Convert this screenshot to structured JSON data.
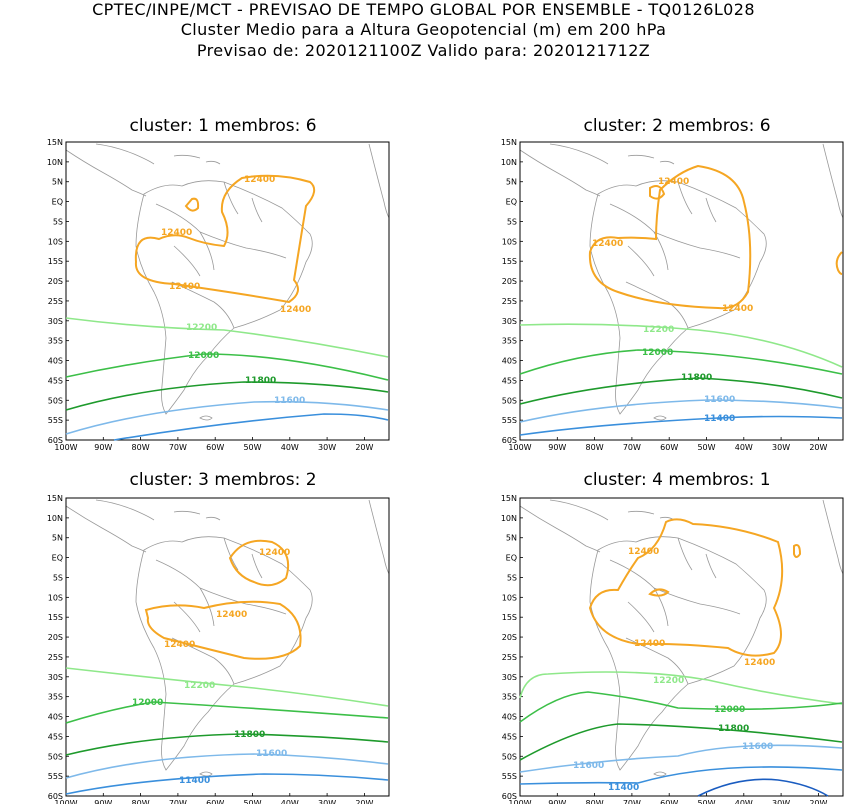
{
  "header": {
    "line1": "CPTEC/INPE/MCT - PREVISAO DE TEMPO GLOBAL POR ENSEMBLE - TQ0126L028",
    "line2": "Cluster Medio para a Altura Geopotencial (m) em 200 hPa",
    "line3": "Previsao de: 2020121100Z    Valido para: 2020121712Z"
  },
  "axes": {
    "lat_labels": [
      "15N",
      "10N",
      "5N",
      "EQ",
      "5S",
      "10S",
      "15S",
      "20S",
      "25S",
      "30S",
      "35S",
      "40S",
      "45S",
      "50S",
      "55S",
      "60S"
    ],
    "lon_labels": [
      "100W",
      "90W",
      "80W",
      "70W",
      "60W",
      "50W",
      "40W",
      "30W",
      "20W"
    ]
  },
  "colors": {
    "c12400": "#f5a623",
    "c12200": "#8fe88a",
    "c12000": "#3cbf48",
    "c11800": "#1e9a2c",
    "c11600": "#7eb9ea",
    "c11400": "#3a8fdc",
    "c11200": "#1a5cc0",
    "coast": "#999999"
  },
  "panels": [
    {
      "title": "cluster: 1   membros: 6",
      "labels": {
        "c12400": "12400",
        "c12200": "12200",
        "c12000": "12000",
        "c11800": "11800",
        "c11600": "11600"
      }
    },
    {
      "title": "cluster: 2   membros: 6",
      "labels": {
        "c12400": "12400",
        "c12200": "12200",
        "c12000": "12000",
        "c11800": "11800",
        "c11600": "11600",
        "c11400": "11400"
      }
    },
    {
      "title": "cluster: 3   membros: 2",
      "labels": {
        "c12400": "12400",
        "c12200": "12200",
        "c12000": "12000",
        "c11800": "11800",
        "c11600": "11600",
        "c11400": "11400"
      }
    },
    {
      "title": "cluster: 4   membros: 1",
      "labels": {
        "c12400": "12400",
        "c12200": "12200",
        "c12000": "12000",
        "c11800": "11800",
        "c11600": "11600",
        "c11400": "11400"
      }
    }
  ]
}
